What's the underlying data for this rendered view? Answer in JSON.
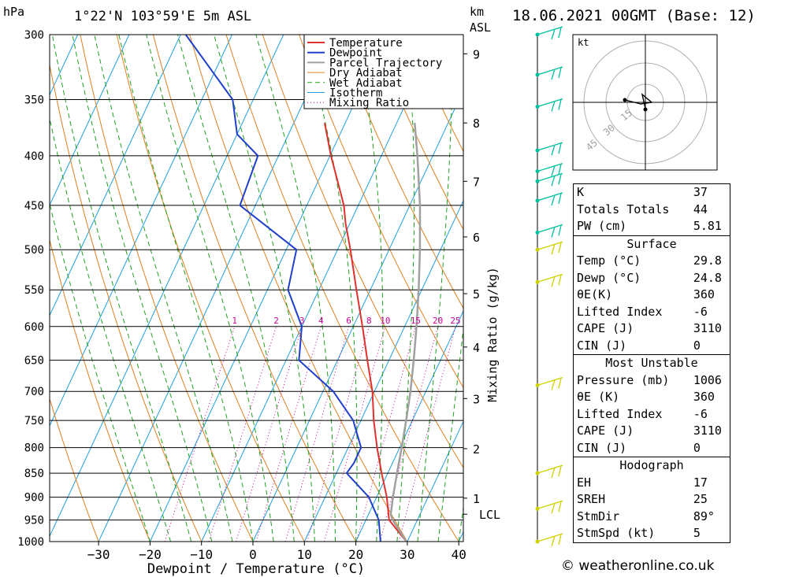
{
  "header": {
    "pressure_unit": "hPa",
    "location": "1°22'N 103°59'E 5m ASL",
    "height_unit": "km",
    "height_ref": "ASL",
    "datetime": "18.06.2021 00GMT (Base: 12)"
  },
  "chart_data": {
    "type": "line",
    "xlabel": "Dewpoint / Temperature (°C)",
    "ylabel": "hPa",
    "x_ticks": [
      -30,
      -20,
      -10,
      0,
      10,
      20,
      30,
      40
    ],
    "y_ticks": [
      300,
      350,
      400,
      450,
      500,
      550,
      600,
      650,
      700,
      750,
      800,
      850,
      900,
      950,
      1000
    ],
    "ylim": [
      1000,
      300
    ],
    "km_ticks": [
      {
        "label": "9",
        "p": 314
      },
      {
        "label": "8",
        "p": 370
      },
      {
        "label": "7",
        "p": 425
      },
      {
        "label": "6",
        "p": 485
      },
      {
        "label": "5",
        "p": 555
      },
      {
        "label": "4",
        "p": 630
      },
      {
        "label": "3",
        "p": 712
      },
      {
        "label": "2",
        "p": 802
      },
      {
        "label": "1",
        "p": 902
      },
      {
        "label": "LCL",
        "p": 937
      }
    ],
    "right_axis_label": "Mixing Ratio (g/kg)",
    "mixing_ratio_labels": [
      "1",
      "2",
      "3",
      "4",
      "6",
      "8",
      "10",
      "15",
      "20",
      "25"
    ],
    "legend": [
      "Temperature",
      "Dewpoint",
      "Parcel Trajectory",
      "Dry Adiabat",
      "Wet Adiabat",
      "Isotherm",
      "Mixing Ratio"
    ],
    "series": [
      {
        "name": "Temperature",
        "color": "#e03030",
        "points": [
          [
            1000,
            29.8
          ],
          [
            950,
            24.5
          ],
          [
            900,
            22.0
          ],
          [
            850,
            18.8
          ],
          [
            800,
            15.6
          ],
          [
            750,
            12.5
          ],
          [
            700,
            9.6
          ],
          [
            650,
            5.8
          ],
          [
            600,
            1.8
          ],
          [
            550,
            -2.7
          ],
          [
            500,
            -7.5
          ],
          [
            470,
            -10.8
          ],
          [
            450,
            -12.8
          ],
          [
            400,
            -19.8
          ],
          [
            370,
            -24.0
          ]
        ]
      },
      {
        "name": "Dewpoint",
        "color": "#2040cc",
        "points": [
          [
            1000,
            24.8
          ],
          [
            950,
            22.5
          ],
          [
            900,
            18.5
          ],
          [
            850,
            12.0
          ],
          [
            830,
            12.5
          ],
          [
            800,
            12.5
          ],
          [
            750,
            8.5
          ],
          [
            700,
            2.0
          ],
          [
            650,
            -7.5
          ],
          [
            600,
            -10.0
          ],
          [
            550,
            -16.0
          ],
          [
            500,
            -18.0
          ],
          [
            450,
            -33.0
          ],
          [
            400,
            -34.0
          ],
          [
            380,
            -40.0
          ],
          [
            350,
            -44.0
          ],
          [
            300,
            -59.0
          ]
        ]
      },
      {
        "name": "Parcel Trajectory",
        "color": "#a0a0a0",
        "points": [
          [
            1000,
            29.8
          ],
          [
            950,
            25.2
          ],
          [
            937,
            24.3
          ],
          [
            900,
            23.2
          ],
          [
            850,
            21.8
          ],
          [
            800,
            20.4
          ],
          [
            750,
            18.8
          ],
          [
            700,
            17.0
          ],
          [
            650,
            14.8
          ],
          [
            600,
            12.3
          ],
          [
            550,
            9.4
          ],
          [
            500,
            6.0
          ],
          [
            450,
            2.0
          ],
          [
            400,
            -3.0
          ],
          [
            370,
            -6.5
          ]
        ]
      }
    ]
  },
  "hodograph": {
    "unit": "kt",
    "ring_labels": [
      "15",
      "30",
      "45"
    ]
  },
  "indices": {
    "general": [
      {
        "label": "K",
        "value": "37"
      },
      {
        "label": "Totals Totals",
        "value": "44"
      },
      {
        "label": "PW (cm)",
        "value": "5.81"
      }
    ],
    "surface_title": "Surface",
    "surface": [
      {
        "label": "Temp (°C)",
        "value": "29.8"
      },
      {
        "label": "Dewp (°C)",
        "value": "24.8"
      },
      {
        "label": "θE(K)",
        "value": "360"
      },
      {
        "label": "Lifted Index",
        "value": "-6"
      },
      {
        "label": "CAPE (J)",
        "value": "3110"
      },
      {
        "label": "CIN (J)",
        "value": "0"
      }
    ],
    "mu_title": "Most Unstable",
    "most_unstable": [
      {
        "label": "Pressure (mb)",
        "value": "1006"
      },
      {
        "label": "θE (K)",
        "value": "360"
      },
      {
        "label": "Lifted Index",
        "value": "-6"
      },
      {
        "label": "CAPE (J)",
        "value": "3110"
      },
      {
        "label": "CIN (J)",
        "value": "0"
      }
    ],
    "hodo_title": "Hodograph",
    "hodograph": [
      {
        "label": "EH",
        "value": "17"
      },
      {
        "label": "SREH",
        "value": "25"
      },
      {
        "label": "StmDir",
        "value": "89°"
      },
      {
        "label": "StmSpd (kt)",
        "value": "5"
      }
    ]
  },
  "footer": "© weatheronline.co.uk",
  "colors": {
    "dry_adiabat": "#e08020",
    "wet_adiabat": "#20a020",
    "isotherm": "#20a0e0",
    "mixing_ratio": "#cc0099",
    "wind_cyan": "#00c0a0",
    "wind_yellow": "#d0d000"
  }
}
